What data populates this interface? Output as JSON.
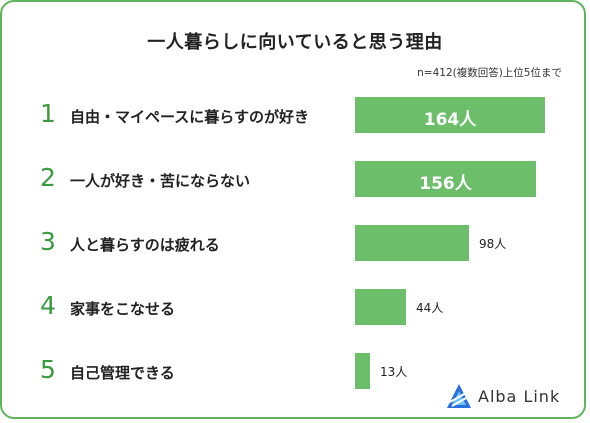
{
  "title": "一人暮らしに向いていると思う理由",
  "note": "n=412(複数回答)上位5位まで",
  "logo": {
    "text": "Alba Link",
    "icon": "alba-link-logo-icon",
    "color": "#2a6fdb"
  },
  "colors": {
    "frame": "#5fb55c",
    "bar": "#6dbe6b",
    "rank": "#3a9a3f"
  },
  "chart_data": {
    "type": "bar",
    "orientation": "horizontal",
    "title": "一人暮らしに向いていると思う理由",
    "xlabel": "",
    "ylabel": "",
    "unit": "人",
    "categories": [
      "自由・マイペースに暮らすのが好き",
      "一人が好き・苦にならない",
      "人と暮らすのは疲れる",
      "家事をこなせる",
      "自己管理できる"
    ],
    "ranks": [
      "1",
      "2",
      "3",
      "4",
      "5"
    ],
    "values": [
      164,
      156,
      98,
      44,
      13
    ],
    "value_labels": [
      "164人",
      "156人",
      "98人",
      "44人",
      "13人"
    ],
    "xlim": [
      0,
      164
    ]
  }
}
